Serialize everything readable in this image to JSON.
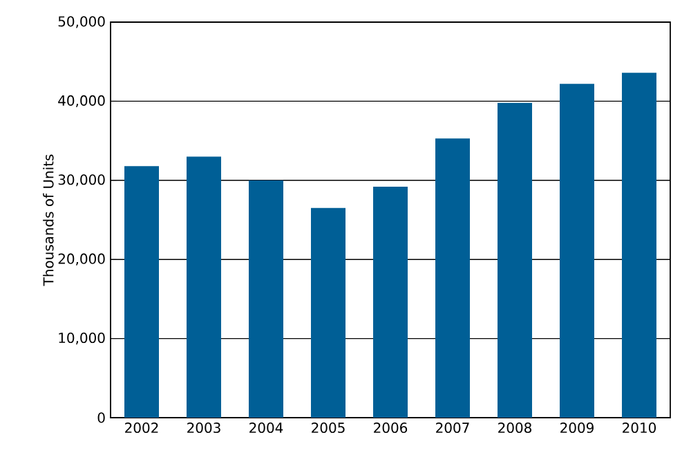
{
  "chart_data": {
    "type": "bar",
    "ylabel": "Thousands of Units",
    "categories": [
      "2002",
      "2003",
      "2004",
      "2005",
      "2006",
      "2007",
      "2008",
      "2009",
      "2010"
    ],
    "values": [
      31800,
      33000,
      30000,
      26500,
      29200,
      35300,
      39800,
      42200,
      43600
    ],
    "color": "#005f96",
    "ylim": [
      0,
      50000
    ],
    "yticks": [
      {
        "value": 0,
        "label": "0"
      },
      {
        "value": 10000,
        "label": "10,000"
      },
      {
        "value": 20000,
        "label": "20,000"
      },
      {
        "value": 30000,
        "label": "30,000"
      },
      {
        "value": 40000,
        "label": "40,000"
      },
      {
        "value": 50000,
        "label": "50,000"
      }
    ],
    "grid": "y"
  }
}
